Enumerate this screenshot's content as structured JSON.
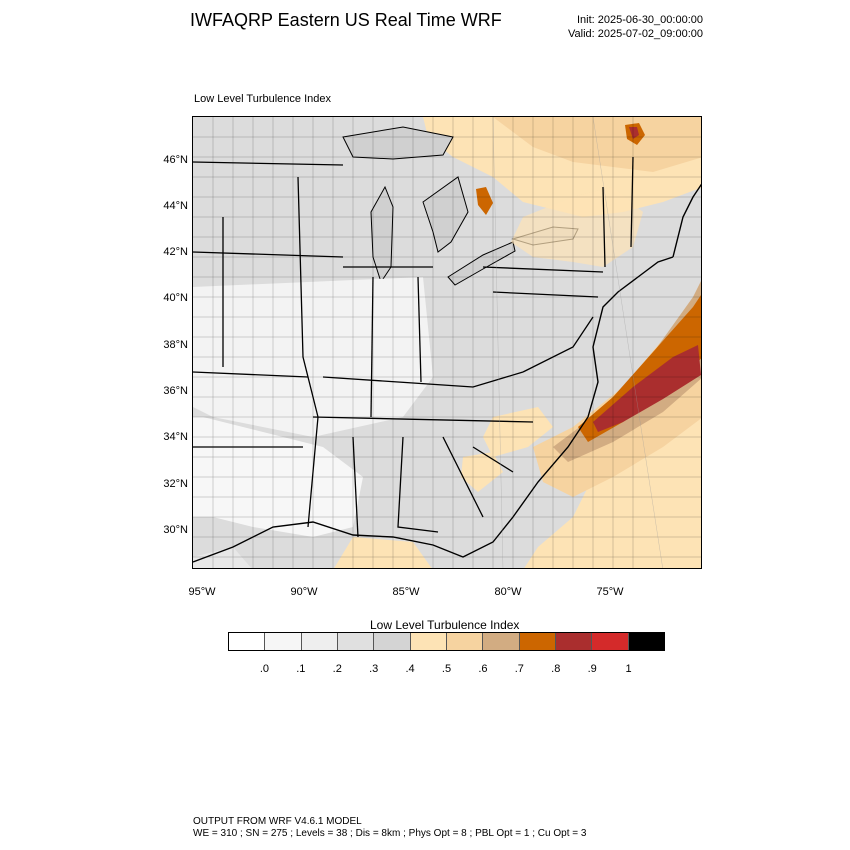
{
  "header": {
    "title": "IWFAQRP Eastern US Real Time WRF",
    "init": "Init: 2025-06-30_00:00:00",
    "valid": "Valid: 2025-07-02_09:00:00"
  },
  "panel": {
    "title": "Low Level Turbulence Index"
  },
  "map": {
    "lat_labels": [
      "46°N",
      "44°N",
      "42°N",
      "40°N",
      "38°N",
      "36°N",
      "34°N",
      "32°N",
      "30°N"
    ],
    "lon_labels": [
      "95°W",
      "90°W",
      "85°W",
      "80°W",
      "75°W"
    ],
    "colors": {
      "land_light": "#dcdcdc",
      "land_white": "#f7f7f7",
      "lake": "#d4d4d4",
      "peach_light": "#fde3b5",
      "peach": "#f6d3a0",
      "tan": "#d2ac82",
      "orange": "#cc6600",
      "brick": "#aa2e2e",
      "border": "#000000"
    }
  },
  "colorbar": {
    "title": "Low Level Turbulence Index",
    "swatch_colors": [
      "#ffffff",
      "#f6f6f6",
      "#eeeeee",
      "#e0e0e0",
      "#d4d4d4",
      "#fde3b5",
      "#f6d3a0",
      "#d2ac82",
      "#cc6600",
      "#aa2e2e",
      "#d42a2a",
      "#000000"
    ],
    "labels": [
      ".0",
      ".1",
      ".2",
      ".3",
      ".4",
      ".5",
      ".6",
      ".7",
      ".8",
      ".9",
      "1"
    ]
  },
  "footer": {
    "line1": "OUTPUT FROM WRF V4.6.1 MODEL",
    "line2": "WE = 310 ; SN = 275 ; Levels = 38 ; Dis = 8km ; Phys Opt = 8 ; PBL Opt = 1 ; Cu Opt = 3"
  }
}
